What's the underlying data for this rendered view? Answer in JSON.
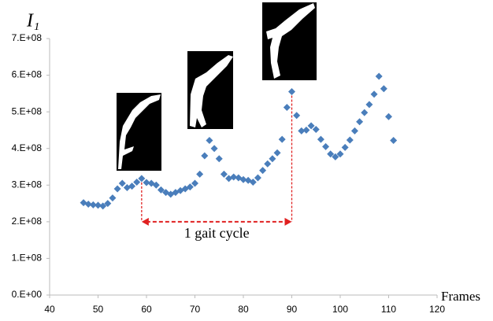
{
  "chart_data": {
    "type": "scatter",
    "y_label": "I₁",
    "x_label": "Frames",
    "annotation": "1 gait cycle",
    "xlim": [
      40,
      120
    ],
    "xticks": [
      40,
      50,
      60,
      70,
      80,
      90,
      100,
      110,
      120
    ],
    "ylim": [
      0,
      700000000
    ],
    "yticks": [
      {
        "value": 0,
        "label": "0.E+00"
      },
      {
        "value": 100000000,
        "label": "1.E+08"
      },
      {
        "value": 200000000,
        "label": "2.E+08"
      },
      {
        "value": 300000000,
        "label": "3.E+08"
      },
      {
        "value": 400000000,
        "label": "4.E+08"
      },
      {
        "value": 500000000,
        "label": "5.E+08"
      },
      {
        "value": 600000000,
        "label": "6.E+08"
      },
      {
        "value": 700000000,
        "label": "7.E+08"
      }
    ],
    "marker_color": "#4a7ebb",
    "annotation_color": "#e02020",
    "x": [
      47,
      48,
      49,
      50,
      51,
      52,
      53,
      54,
      55,
      56,
      57,
      58,
      59,
      60,
      61,
      62,
      63,
      64,
      65,
      66,
      67,
      68,
      69,
      70,
      71,
      72,
      73,
      74,
      75,
      76,
      77,
      78,
      79,
      80,
      81,
      82,
      83,
      84,
      85,
      86,
      87,
      88,
      89,
      90,
      91,
      92,
      93,
      94,
      95,
      96,
      97,
      98,
      99,
      100,
      101,
      102,
      103,
      104,
      105,
      106,
      107,
      108,
      109,
      110,
      111
    ],
    "values": [
      252000000,
      248000000,
      246000000,
      245000000,
      243000000,
      250000000,
      265000000,
      290000000,
      305000000,
      293000000,
      297000000,
      308000000,
      318000000,
      307000000,
      305000000,
      300000000,
      287000000,
      280000000,
      275000000,
      280000000,
      285000000,
      290000000,
      295000000,
      305000000,
      330000000,
      380000000,
      422000000,
      400000000,
      372000000,
      330000000,
      318000000,
      322000000,
      320000000,
      315000000,
      313000000,
      308000000,
      320000000,
      340000000,
      358000000,
      372000000,
      388000000,
      425000000,
      512000000,
      555000000,
      490000000,
      448000000,
      450000000,
      462000000,
      452000000,
      425000000,
      405000000,
      385000000,
      377000000,
      385000000,
      403000000,
      423000000,
      448000000,
      473000000,
      498000000,
      520000000,
      548000000,
      597000000,
      563000000,
      487000000,
      422000000
    ]
  }
}
